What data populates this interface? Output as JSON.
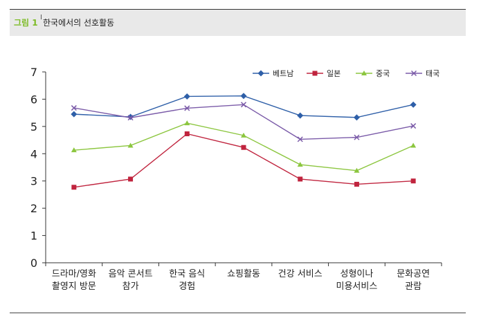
{
  "header": {
    "figure_number": "그림 1",
    "separator": "I",
    "title": "한국에서의 선호활동"
  },
  "chart_data": {
    "type": "line",
    "title": "한국에서의 선호활동",
    "xlabel": "",
    "ylabel": "",
    "ylim": [
      0,
      7
    ],
    "yticks": [
      0,
      1,
      2,
      3,
      4,
      5,
      6,
      7
    ],
    "grid": false,
    "legend_position": "top-right",
    "categories": [
      [
        "드라마/영화",
        "촬영지 방문"
      ],
      [
        "음악 콘서트",
        "참가"
      ],
      [
        "한국 음식",
        "경험"
      ],
      [
        "쇼핑활동"
      ],
      [
        "건강 서비스"
      ],
      [
        "성형이나",
        "미용서비스"
      ],
      [
        "문화공연",
        "관람"
      ]
    ],
    "series": [
      {
        "name": "베트남",
        "color": "#2e5fa8",
        "marker": "diamond",
        "values": [
          5.45,
          5.35,
          6.1,
          6.12,
          5.4,
          5.33,
          5.8
        ]
      },
      {
        "name": "일본",
        "color": "#c0243e",
        "marker": "square",
        "values": [
          2.77,
          3.07,
          4.73,
          4.23,
          3.07,
          2.88,
          3.0
        ]
      },
      {
        "name": "중국",
        "color": "#8cc63f",
        "marker": "triangle",
        "values": [
          4.13,
          4.3,
          5.12,
          4.67,
          3.6,
          3.38,
          4.3
        ]
      },
      {
        "name": "태국",
        "color": "#7a5aa8",
        "marker": "x",
        "values": [
          5.68,
          5.32,
          5.67,
          5.8,
          4.53,
          4.6,
          5.02
        ]
      }
    ]
  }
}
